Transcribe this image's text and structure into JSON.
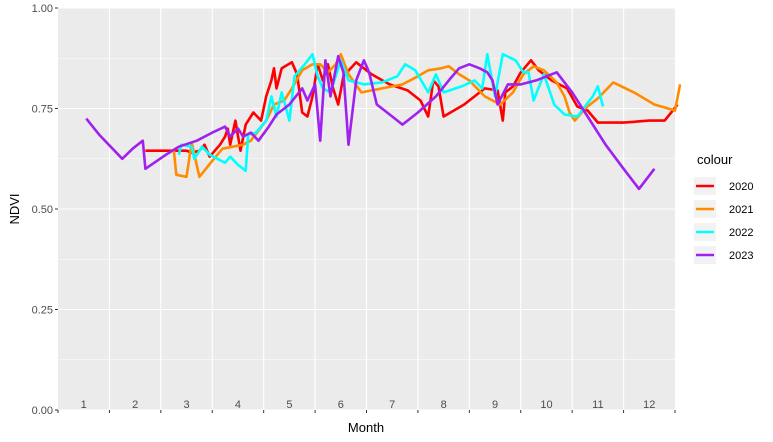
{
  "chart_data": {
    "type": "line",
    "xlabel": "Month",
    "ylabel": "NDVI",
    "xlim": [
      0.5,
      12.5
    ],
    "ylim": [
      0,
      1
    ],
    "y_ticks": [
      0.0,
      0.25,
      0.5,
      0.75,
      1.0
    ],
    "y_tick_labels": [
      "0.00",
      "0.25",
      "0.50",
      "0.75",
      "1.00"
    ],
    "x_month_labels": [
      "1",
      "2",
      "3",
      "4",
      "5",
      "6",
      "7",
      "8",
      "9",
      "10",
      "11",
      "12"
    ],
    "grid": true,
    "legend": {
      "title": "colour",
      "position": "right"
    },
    "series": [
      {
        "name": "2020",
        "color": "#ff0000",
        "points": [
          [
            2.2,
            0.645
          ],
          [
            2.5,
            0.645
          ],
          [
            2.7,
            0.645
          ],
          [
            3.0,
            0.645
          ],
          [
            3.1,
            0.64
          ],
          [
            3.25,
            0.645
          ],
          [
            3.35,
            0.66
          ],
          [
            3.45,
            0.63
          ],
          [
            3.55,
            0.645
          ],
          [
            3.65,
            0.66
          ],
          [
            3.75,
            0.68
          ],
          [
            3.8,
            0.7
          ],
          [
            3.85,
            0.66
          ],
          [
            3.95,
            0.72
          ],
          [
            4.05,
            0.645
          ],
          [
            4.15,
            0.71
          ],
          [
            4.3,
            0.74
          ],
          [
            4.45,
            0.72
          ],
          [
            4.55,
            0.78
          ],
          [
            4.65,
            0.82
          ],
          [
            4.7,
            0.85
          ],
          [
            4.75,
            0.8
          ],
          [
            4.85,
            0.85
          ],
          [
            5.05,
            0.865
          ],
          [
            5.15,
            0.835
          ],
          [
            5.25,
            0.74
          ],
          [
            5.35,
            0.73
          ],
          [
            5.45,
            0.78
          ],
          [
            5.55,
            0.86
          ],
          [
            5.65,
            0.82
          ],
          [
            5.75,
            0.86
          ],
          [
            5.85,
            0.8
          ],
          [
            5.95,
            0.76
          ],
          [
            6.05,
            0.83
          ],
          [
            6.3,
            0.865
          ],
          [
            6.6,
            0.835
          ],
          [
            6.95,
            0.81
          ],
          [
            7.3,
            0.795
          ],
          [
            7.55,
            0.77
          ],
          [
            7.7,
            0.73
          ],
          [
            7.8,
            0.82
          ],
          [
            7.9,
            0.805
          ],
          [
            8.0,
            0.73
          ],
          [
            8.4,
            0.76
          ],
          [
            8.8,
            0.8
          ],
          [
            9.05,
            0.795
          ],
          [
            9.15,
            0.72
          ],
          [
            9.2,
            0.79
          ],
          [
            9.35,
            0.805
          ],
          [
            9.5,
            0.84
          ],
          [
            9.7,
            0.87
          ],
          [
            9.85,
            0.845
          ],
          [
            10.1,
            0.82
          ],
          [
            10.4,
            0.8
          ],
          [
            10.6,
            0.755
          ],
          [
            10.8,
            0.745
          ],
          [
            11.0,
            0.715
          ],
          [
            11.5,
            0.715
          ],
          [
            12.0,
            0.72
          ],
          [
            12.3,
            0.72
          ],
          [
            12.55,
            0.76
          ]
        ]
      },
      {
        "name": "2021",
        "color": "#ff8c00",
        "points": [
          [
            2.75,
            0.65
          ],
          [
            2.8,
            0.585
          ],
          [
            3.0,
            0.58
          ],
          [
            3.1,
            0.665
          ],
          [
            3.25,
            0.58
          ],
          [
            3.5,
            0.62
          ],
          [
            3.7,
            0.65
          ],
          [
            3.9,
            0.655
          ],
          [
            4.1,
            0.66
          ],
          [
            4.25,
            0.67
          ],
          [
            4.4,
            0.695
          ],
          [
            4.55,
            0.72
          ],
          [
            4.7,
            0.76
          ],
          [
            4.9,
            0.77
          ],
          [
            5.05,
            0.8
          ],
          [
            5.25,
            0.845
          ],
          [
            5.45,
            0.86
          ],
          [
            5.6,
            0.86
          ],
          [
            5.75,
            0.84
          ],
          [
            5.9,
            0.86
          ],
          [
            6.0,
            0.885
          ],
          [
            6.15,
            0.835
          ],
          [
            6.4,
            0.79
          ],
          [
            6.8,
            0.8
          ],
          [
            7.2,
            0.81
          ],
          [
            7.5,
            0.83
          ],
          [
            7.7,
            0.845
          ],
          [
            7.95,
            0.85
          ],
          [
            8.1,
            0.855
          ],
          [
            8.3,
            0.835
          ],
          [
            8.5,
            0.82
          ],
          [
            8.8,
            0.78
          ],
          [
            9.1,
            0.76
          ],
          [
            9.35,
            0.79
          ],
          [
            9.55,
            0.835
          ],
          [
            9.75,
            0.855
          ],
          [
            9.95,
            0.845
          ],
          [
            10.2,
            0.815
          ],
          [
            10.35,
            0.78
          ],
          [
            10.45,
            0.74
          ],
          [
            10.55,
            0.72
          ],
          [
            10.75,
            0.75
          ],
          [
            11.0,
            0.775
          ],
          [
            11.3,
            0.815
          ],
          [
            11.7,
            0.79
          ],
          [
            12.1,
            0.76
          ],
          [
            12.5,
            0.745
          ],
          [
            12.6,
            0.81
          ]
        ]
      },
      {
        "name": "2022",
        "color": "#00ffff",
        "points": [
          [
            2.85,
            0.635
          ],
          [
            2.9,
            0.66
          ],
          [
            3.1,
            0.655
          ],
          [
            3.15,
            0.625
          ],
          [
            3.3,
            0.655
          ],
          [
            3.45,
            0.635
          ],
          [
            3.6,
            0.625
          ],
          [
            3.75,
            0.615
          ],
          [
            3.85,
            0.63
          ],
          [
            4.0,
            0.61
          ],
          [
            4.15,
            0.595
          ],
          [
            4.2,
            0.685
          ],
          [
            4.35,
            0.69
          ],
          [
            4.55,
            0.72
          ],
          [
            4.65,
            0.78
          ],
          [
            4.75,
            0.73
          ],
          [
            4.85,
            0.79
          ],
          [
            5.0,
            0.72
          ],
          [
            5.1,
            0.83
          ],
          [
            5.3,
            0.86
          ],
          [
            5.45,
            0.885
          ],
          [
            5.55,
            0.83
          ],
          [
            5.65,
            0.8
          ],
          [
            5.8,
            0.79
          ],
          [
            6.0,
            0.87
          ],
          [
            6.15,
            0.82
          ],
          [
            6.45,
            0.81
          ],
          [
            6.8,
            0.815
          ],
          [
            7.1,
            0.83
          ],
          [
            7.25,
            0.86
          ],
          [
            7.45,
            0.845
          ],
          [
            7.7,
            0.79
          ],
          [
            7.85,
            0.835
          ],
          [
            8.0,
            0.79
          ],
          [
            8.35,
            0.805
          ],
          [
            8.6,
            0.82
          ],
          [
            8.75,
            0.8
          ],
          [
            8.85,
            0.885
          ],
          [
            9.0,
            0.78
          ],
          [
            9.15,
            0.885
          ],
          [
            9.4,
            0.87
          ],
          [
            9.55,
            0.84
          ],
          [
            9.65,
            0.84
          ],
          [
            9.75,
            0.77
          ],
          [
            9.95,
            0.835
          ],
          [
            10.15,
            0.76
          ],
          [
            10.35,
            0.735
          ],
          [
            10.6,
            0.73
          ],
          [
            10.9,
            0.78
          ],
          [
            11.0,
            0.805
          ],
          [
            11.1,
            0.755
          ]
        ]
      },
      {
        "name": "2023",
        "color": "#a020f0",
        "points": [
          [
            1.05,
            0.725
          ],
          [
            1.3,
            0.685
          ],
          [
            1.75,
            0.625
          ],
          [
            1.95,
            0.65
          ],
          [
            2.15,
            0.67
          ],
          [
            2.2,
            0.6
          ],
          [
            2.6,
            0.635
          ],
          [
            2.85,
            0.655
          ],
          [
            3.2,
            0.67
          ],
          [
            3.5,
            0.69
          ],
          [
            3.75,
            0.705
          ],
          [
            3.85,
            0.68
          ],
          [
            4.0,
            0.7
          ],
          [
            4.1,
            0.68
          ],
          [
            4.25,
            0.69
          ],
          [
            4.4,
            0.67
          ],
          [
            4.6,
            0.705
          ],
          [
            4.75,
            0.735
          ],
          [
            5.0,
            0.76
          ],
          [
            5.25,
            0.8
          ],
          [
            5.35,
            0.77
          ],
          [
            5.5,
            0.81
          ],
          [
            5.6,
            0.67
          ],
          [
            5.7,
            0.87
          ],
          [
            5.8,
            0.78
          ],
          [
            5.95,
            0.88
          ],
          [
            6.05,
            0.84
          ],
          [
            6.15,
            0.66
          ],
          [
            6.3,
            0.82
          ],
          [
            6.45,
            0.87
          ],
          [
            6.55,
            0.84
          ],
          [
            6.7,
            0.76
          ],
          [
            7.0,
            0.73
          ],
          [
            7.2,
            0.71
          ],
          [
            7.5,
            0.74
          ],
          [
            7.85,
            0.78
          ],
          [
            8.1,
            0.82
          ],
          [
            8.3,
            0.85
          ],
          [
            8.5,
            0.86
          ],
          [
            8.7,
            0.85
          ],
          [
            8.85,
            0.84
          ],
          [
            8.95,
            0.82
          ],
          [
            9.05,
            0.76
          ],
          [
            9.25,
            0.81
          ],
          [
            9.5,
            0.81
          ],
          [
            9.8,
            0.82
          ],
          [
            10.2,
            0.84
          ],
          [
            10.5,
            0.79
          ],
          [
            10.8,
            0.73
          ],
          [
            11.15,
            0.66
          ],
          [
            11.5,
            0.6
          ],
          [
            11.8,
            0.55
          ],
          [
            12.1,
            0.6
          ]
        ]
      }
    ]
  }
}
